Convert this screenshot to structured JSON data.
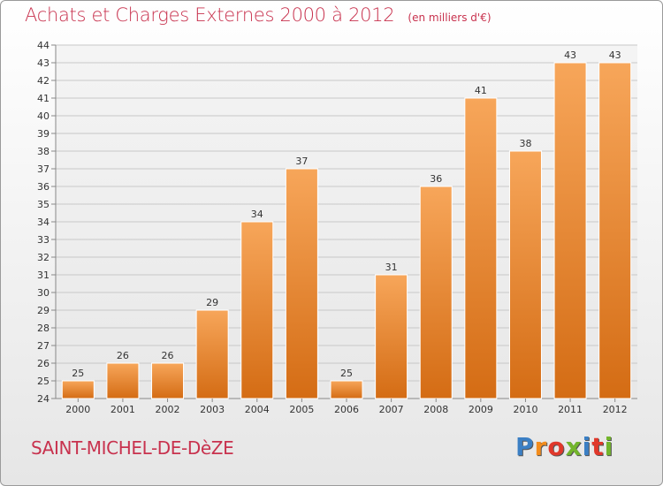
{
  "title": "Achats et Charges Externes 2000 à 2012",
  "unit": "(en milliers d'€)",
  "commune": "SAINT-MICHEL-DE-DèZE",
  "logo": {
    "text": "Proxiti",
    "letter_colors": [
      "#3b7fc4",
      "#f28c1c",
      "#e0382b",
      "#73b52c",
      "#3b7fc4",
      "#e0382b",
      "#73b52c"
    ]
  },
  "colors": {
    "title": "#c8324e",
    "bar_top": "#f7a65a",
    "bar_bottom": "#d46c14",
    "grid": "#c8c8c8"
  },
  "chart_data": {
    "type": "bar",
    "categories": [
      "2000",
      "2001",
      "2002",
      "2003",
      "2004",
      "2005",
      "2006",
      "2007",
      "2008",
      "2009",
      "2010",
      "2011",
      "2012"
    ],
    "values": [
      25,
      26,
      26,
      29,
      34,
      37,
      25,
      31,
      36,
      41,
      38,
      43,
      43
    ],
    "ylim": [
      24,
      44
    ],
    "yticks": [
      24,
      25,
      26,
      27,
      28,
      29,
      30,
      31,
      32,
      33,
      34,
      35,
      36,
      37,
      38,
      39,
      40,
      41,
      42,
      43,
      44
    ],
    "grid": true,
    "data_labels": true
  }
}
